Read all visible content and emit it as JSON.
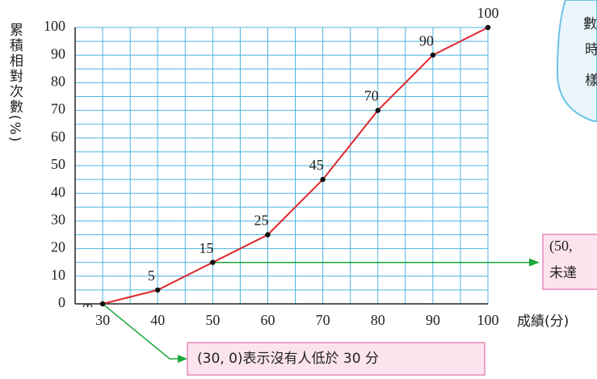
{
  "chart_data": {
    "type": "line",
    "y_label": "累積相對次數(%)",
    "x_label": "成績(分)",
    "x": [
      30,
      40,
      50,
      60,
      70,
      80,
      90,
      100
    ],
    "series": [
      {
        "name": "累積相對次數",
        "color": "#e0282e",
        "values": [
          0,
          5,
          15,
          25,
          45,
          70,
          90,
          100
        ]
      }
    ],
    "xlim": [
      25,
      100
    ],
    "xticks": [
      30,
      40,
      50,
      60,
      70,
      80,
      90,
      100
    ],
    "ylim": [
      0,
      100
    ],
    "yticks": [
      0,
      10,
      20,
      30,
      40,
      50,
      60,
      70,
      80,
      90,
      100
    ],
    "grid": true,
    "annotations": {
      "bottom": "(30, 0)表示沒有人低於 30 分",
      "right": [
        "(50,",
        "未達"
      ],
      "bubble": [
        "數",
        "時",
        "樣"
      ]
    }
  }
}
